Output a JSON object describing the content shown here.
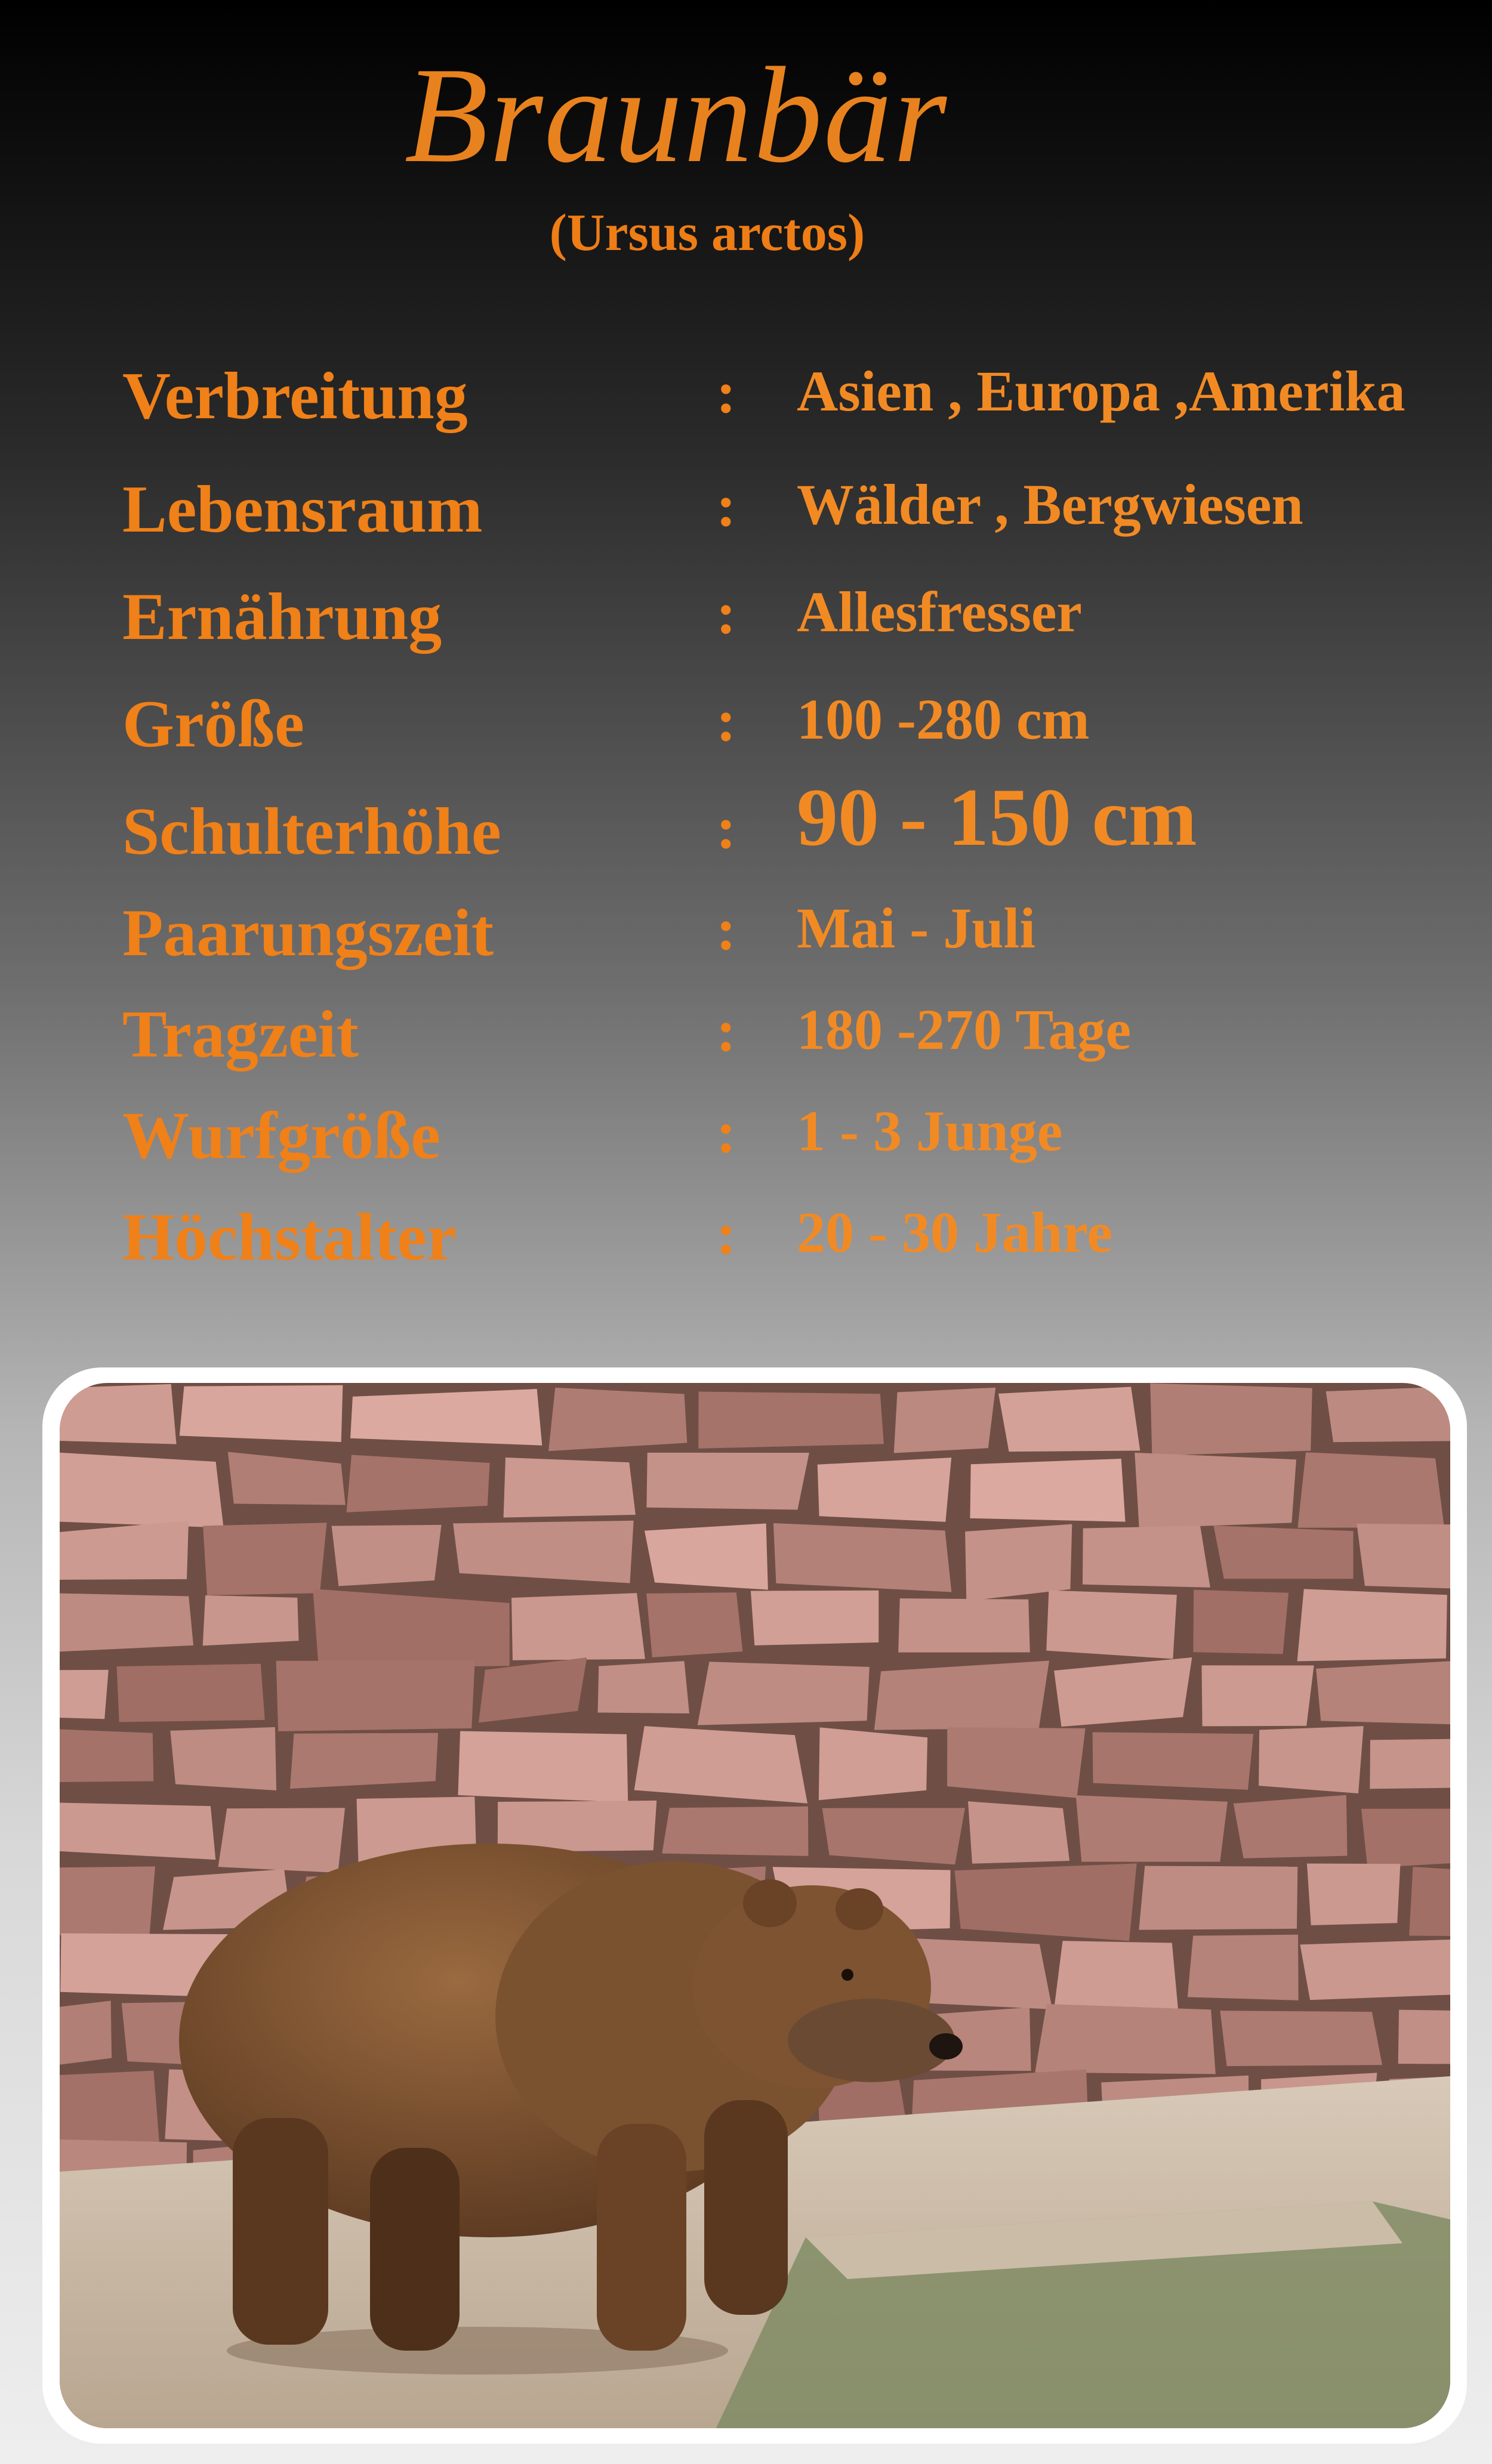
{
  "header": {
    "title": "Braunbär",
    "subtitle": "(Ursus arctos)"
  },
  "separator": ":",
  "facts": [
    {
      "label": "Verbreitung",
      "value": "Asien , Europa ,Amerika"
    },
    {
      "label": "Lebensraum",
      "value": "Wälder , Bergwiesen"
    },
    {
      "label": "Ernährung",
      "value": "Allesfresser"
    },
    {
      "label": "Größe",
      "value": "100 -280 cm"
    },
    {
      "label": "Schulterhöhe",
      "value": "90 - 150 cm"
    },
    {
      "label": "Paarungszeit",
      "value": "Mai - Juli"
    },
    {
      "label": "Tragzeit",
      "value": "180 -270 Tage"
    },
    {
      "label": "Wurfgröße",
      "value": "1 - 3 Junge"
    },
    {
      "label": "Höchstalter",
      "value": "20 - 30 Jahre"
    }
  ]
}
